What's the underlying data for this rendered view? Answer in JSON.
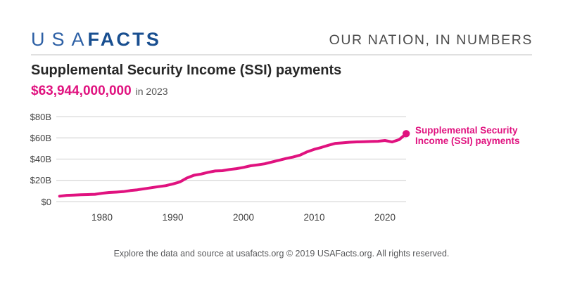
{
  "header": {
    "logo_usa": "USA",
    "logo_facts": "FACTS",
    "tagline": "OUR NATION, IN NUMBERS"
  },
  "title": "Supplemental Security Income (SSI) payments",
  "highlight": {
    "value": "$63,944,000,000",
    "period": "in 2023"
  },
  "footer": "Explore the data and source at usafacts.org © 2019 USAFacts.org. All rights reserved.",
  "colors": {
    "accent_magenta": "#e0127f",
    "logo_blue_light": "#2d60a5",
    "logo_blue_dark": "#194f90",
    "grid": "#dadada"
  },
  "chart_data": {
    "type": "line",
    "title": "Supplemental Security Income (SSI) payments",
    "series_label": "Supplemental Security Income (SSI) payments",
    "x": [
      1974,
      1975,
      1976,
      1977,
      1978,
      1979,
      1980,
      1981,
      1982,
      1983,
      1984,
      1985,
      1986,
      1987,
      1988,
      1989,
      1990,
      1991,
      1992,
      1993,
      1994,
      1995,
      1996,
      1997,
      1998,
      1999,
      2000,
      2001,
      2002,
      2003,
      2004,
      2005,
      2006,
      2007,
      2008,
      2009,
      2010,
      2011,
      2012,
      2013,
      2014,
      2015,
      2016,
      2017,
      2018,
      2019,
      2020,
      2021,
      2022,
      2023
    ],
    "values": [
      5.1,
      5.9,
      6.1,
      6.4,
      6.6,
      6.9,
      7.9,
      8.6,
      8.9,
      9.4,
      10.4,
      11.1,
      12.1,
      13.1,
      14.1,
      15.0,
      16.6,
      18.5,
      22.2,
      24.8,
      25.9,
      27.6,
      28.8,
      29.1,
      30.2,
      31.0,
      32.2,
      33.7,
      34.6,
      35.6,
      37.2,
      38.9,
      40.5,
      41.9,
      43.8,
      46.9,
      49.2,
      51.0,
      53.0,
      54.8,
      55.3,
      55.9,
      56.2,
      56.4,
      56.6,
      56.8,
      57.5,
      56.1,
      58.3,
      63.944
    ],
    "ylim": [
      0,
      80
    ],
    "yticks": [
      {
        "value": 0,
        "label": "$0"
      },
      {
        "value": 20,
        "label": "$20B"
      },
      {
        "value": 40,
        "label": "$40B"
      },
      {
        "value": 60,
        "label": "$60B"
      },
      {
        "value": 80,
        "label": "$80B"
      }
    ],
    "xticks": [
      1980,
      1990,
      2000,
      2010,
      2020
    ],
    "grid": "horizontal",
    "legend_position": "right-of-line-end"
  }
}
